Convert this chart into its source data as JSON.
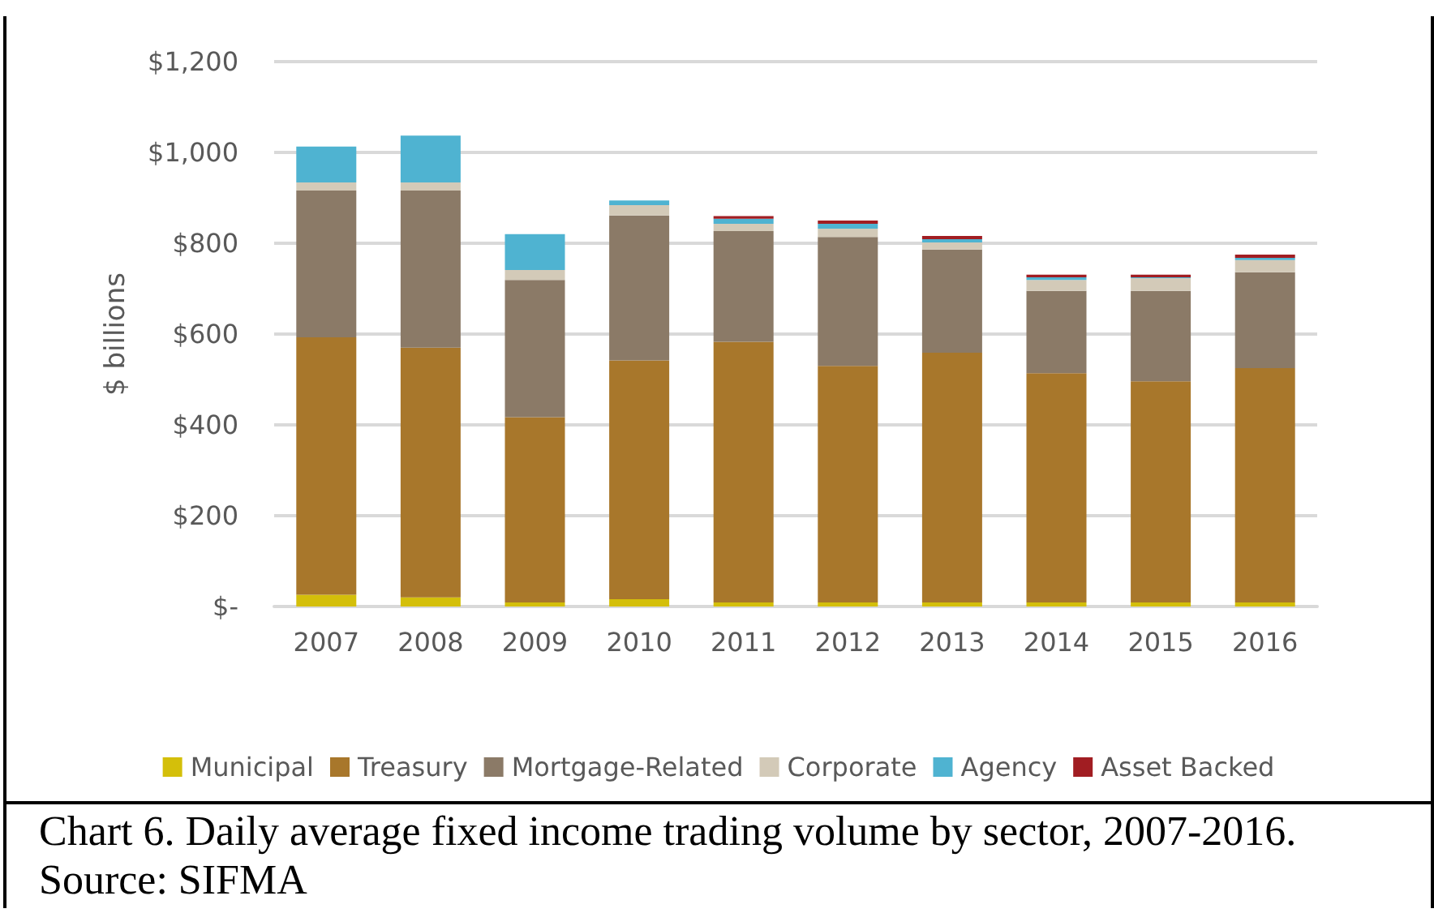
{
  "chart_data": {
    "type": "bar",
    "stacked": true,
    "ylabel": "$ billions",
    "categories": [
      "2007",
      "2008",
      "2009",
      "2010",
      "2011",
      "2012",
      "2013",
      "2014",
      "2015",
      "2016"
    ],
    "series": [
      {
        "name": "Municipal",
        "color": "#d4bf0a",
        "values": [
          26,
          20,
          9,
          16,
          9,
          9,
          9,
          9,
          9,
          9
        ]
      },
      {
        "name": "Treasury",
        "color": "#a8772b",
        "values": [
          567,
          550,
          408,
          526,
          574,
          521,
          550,
          505,
          487,
          516
        ]
      },
      {
        "name": "Mortgage-Related",
        "color": "#8b7a67",
        "values": [
          323,
          346,
          302,
          319,
          244,
          284,
          227,
          181,
          199,
          211
        ]
      },
      {
        "name": "Corporate",
        "color": "#d3cab8",
        "values": [
          18,
          18,
          22,
          23,
          16,
          18,
          16,
          24,
          28,
          27
        ]
      },
      {
        "name": "Agency",
        "color": "#4fb3d1",
        "values": [
          79,
          103,
          79,
          10,
          11,
          11,
          7,
          6,
          2,
          5
        ]
      },
      {
        "name": "Asset Backed",
        "color": "#a11d22",
        "values": [
          null,
          null,
          null,
          null,
          6,
          7,
          7,
          6,
          6,
          7
        ]
      }
    ],
    "ylim": [
      0,
      1200
    ],
    "yticks": [
      {
        "value": 0,
        "label": "$-"
      },
      {
        "value": 200,
        "label": "$200"
      },
      {
        "value": 400,
        "label": "$400"
      },
      {
        "value": 600,
        "label": "$600"
      },
      {
        "value": 800,
        "label": "$800"
      },
      {
        "value": 1000,
        "label": "$1,000"
      },
      {
        "value": 1200,
        "label": "$1,200"
      }
    ],
    "grid": "y",
    "legend": "bottom",
    "annotations": [
      "Chart 6. Daily average fixed income trading volume by sector, 2007-2016. Source: SIFMA"
    ]
  }
}
